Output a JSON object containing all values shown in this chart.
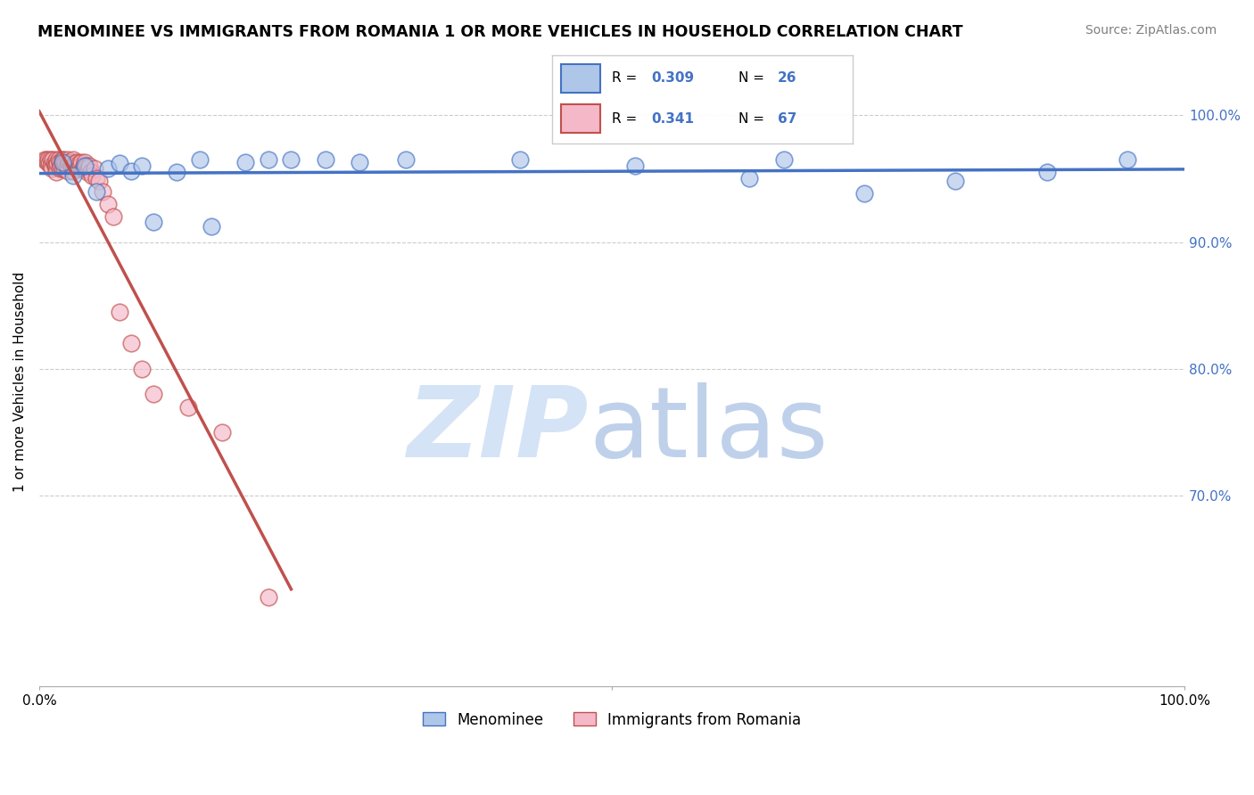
{
  "title": "MENOMINEE VS IMMIGRANTS FROM ROMANIA 1 OR MORE VEHICLES IN HOUSEHOLD CORRELATION CHART",
  "source": "Source: ZipAtlas.com",
  "ylabel": "1 or more Vehicles in Household",
  "blue_R": 0.309,
  "blue_N": 26,
  "pink_R": 0.341,
  "pink_N": 67,
  "blue_color": "#aec6e8",
  "pink_color": "#f4b8c8",
  "blue_line_color": "#4472c4",
  "pink_line_color": "#c0504d",
  "legend_blue_label": "Menominee",
  "legend_pink_label": "Immigrants from Romania",
  "blue_x": [
    0.02,
    0.03,
    0.04,
    0.05,
    0.06,
    0.07,
    0.08,
    0.09,
    0.1,
    0.12,
    0.14,
    0.15,
    0.18,
    0.2,
    0.22,
    0.25,
    0.28,
    0.32,
    0.42,
    0.52,
    0.62,
    0.65,
    0.72,
    0.8,
    0.88,
    0.95
  ],
  "blue_y": [
    0.963,
    0.952,
    0.96,
    0.94,
    0.958,
    0.962,
    0.956,
    0.96,
    0.916,
    0.955,
    0.965,
    0.912,
    0.963,
    0.965,
    0.965,
    0.965,
    0.963,
    0.965,
    0.965,
    0.96,
    0.95,
    0.965,
    0.938,
    0.948,
    0.955,
    0.965
  ],
  "pink_x": [
    0.005,
    0.006,
    0.007,
    0.008,
    0.009,
    0.01,
    0.01,
    0.011,
    0.012,
    0.013,
    0.014,
    0.015,
    0.015,
    0.015,
    0.016,
    0.017,
    0.018,
    0.018,
    0.019,
    0.02,
    0.02,
    0.02,
    0.021,
    0.022,
    0.022,
    0.023,
    0.024,
    0.025,
    0.025,
    0.025,
    0.026,
    0.027,
    0.028,
    0.029,
    0.03,
    0.03,
    0.03,
    0.031,
    0.032,
    0.033,
    0.034,
    0.035,
    0.036,
    0.037,
    0.038,
    0.039,
    0.04,
    0.04,
    0.041,
    0.042,
    0.043,
    0.044,
    0.045,
    0.046,
    0.048,
    0.05,
    0.052,
    0.055,
    0.06,
    0.065,
    0.07,
    0.08,
    0.09,
    0.1,
    0.13,
    0.16,
    0.2
  ],
  "pink_y": [
    0.965,
    0.965,
    0.963,
    0.965,
    0.962,
    0.965,
    0.96,
    0.958,
    0.965,
    0.962,
    0.96,
    0.965,
    0.96,
    0.955,
    0.962,
    0.965,
    0.963,
    0.958,
    0.96,
    0.965,
    0.962,
    0.958,
    0.965,
    0.963,
    0.958,
    0.962,
    0.96,
    0.965,
    0.96,
    0.956,
    0.963,
    0.962,
    0.96,
    0.963,
    0.965,
    0.96,
    0.956,
    0.962,
    0.96,
    0.963,
    0.958,
    0.962,
    0.96,
    0.963,
    0.958,
    0.96,
    0.963,
    0.958,
    0.96,
    0.955,
    0.958,
    0.96,
    0.955,
    0.952,
    0.958,
    0.95,
    0.948,
    0.94,
    0.93,
    0.92,
    0.845,
    0.82,
    0.8,
    0.78,
    0.77,
    0.75,
    0.62
  ],
  "ylim_min": 0.55,
  "ylim_max": 1.03,
  "ytick_positions": [
    1.0,
    0.9,
    0.8,
    0.7
  ],
  "ytick_labels": [
    "100.0%",
    "90.0%",
    "80.0%",
    "70.0%"
  ],
  "grid_color": "#cccccc",
  "watermark_zip_color": "#d0e0f5",
  "watermark_atlas_color": "#b8cce8"
}
